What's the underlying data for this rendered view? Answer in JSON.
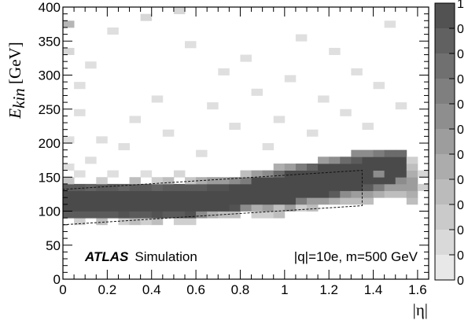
{
  "chart_data": {
    "type": "heatmap",
    "xlabel": "|η|",
    "ylabel_main": "E",
    "ylabel_sub": "kin",
    "ylabel_unit": " [GeV]",
    "xlim": [
      0,
      1.65
    ],
    "ylim": [
      0,
      400
    ],
    "x_ticks": [
      "0",
      "0.2",
      "0.4",
      "0.6",
      "0.8",
      "1",
      "1.2",
      "1.4",
      "1.6"
    ],
    "y_ticks": [
      "0",
      "50",
      "100",
      "150",
      "200",
      "250",
      "300",
      "350",
      "400"
    ],
    "x_bin_width": 0.05,
    "y_bin_width": 10,
    "colorbar_labels": [
      "1",
      "0",
      "0",
      "0",
      "0",
      "0",
      "0",
      "0",
      "0",
      "0",
      "0",
      "0"
    ],
    "colorbar_range": [
      0,
      1
    ],
    "cells": [
      [
        0,
        90,
        0.9
      ],
      [
        0,
        100,
        1.0
      ],
      [
        0,
        110,
        1.0
      ],
      [
        0,
        120,
        1.0
      ],
      [
        0,
        130,
        0.9
      ],
      [
        0,
        140,
        0.25
      ],
      [
        0,
        160,
        0.1
      ],
      [
        0,
        200,
        0.1
      ],
      [
        0,
        330,
        0.15
      ],
      [
        0,
        370,
        0.35
      ],
      [
        1,
        80,
        0.2
      ],
      [
        1,
        90,
        0.9
      ],
      [
        1,
        100,
        1.0
      ],
      [
        1,
        110,
        1.0
      ],
      [
        1,
        120,
        1.0
      ],
      [
        1,
        130,
        0.9
      ],
      [
        1,
        150,
        0.1
      ],
      [
        1,
        240,
        0.1
      ],
      [
        1,
        280,
        0.1
      ],
      [
        2,
        90,
        0.9
      ],
      [
        2,
        100,
        1.0
      ],
      [
        2,
        110,
        1.0
      ],
      [
        2,
        120,
        1.0
      ],
      [
        2,
        130,
        0.85
      ],
      [
        2,
        170,
        0.1
      ],
      [
        2,
        310,
        0.1
      ],
      [
        3,
        80,
        0.3
      ],
      [
        3,
        90,
        0.9
      ],
      [
        3,
        100,
        1.0
      ],
      [
        3,
        110,
        1.0
      ],
      [
        3,
        120,
        1.0
      ],
      [
        3,
        130,
        0.9
      ],
      [
        3,
        140,
        0.2
      ],
      [
        3,
        200,
        0.1
      ],
      [
        4,
        90,
        0.9
      ],
      [
        4,
        100,
        1.0
      ],
      [
        4,
        110,
        1.0
      ],
      [
        4,
        120,
        1.0
      ],
      [
        4,
        130,
        0.9
      ],
      [
        4,
        150,
        0.1
      ],
      [
        4,
        360,
        0.1
      ],
      [
        5,
        80,
        0.2
      ],
      [
        5,
        90,
        0.95
      ],
      [
        5,
        100,
        1.0
      ],
      [
        5,
        110,
        1.0
      ],
      [
        5,
        120,
        1.0
      ],
      [
        5,
        130,
        0.85
      ],
      [
        5,
        190,
        0.1
      ],
      [
        6,
        80,
        0.3
      ],
      [
        6,
        90,
        0.9
      ],
      [
        6,
        100,
        1.0
      ],
      [
        6,
        110,
        1.0
      ],
      [
        6,
        120,
        1.0
      ],
      [
        6,
        130,
        0.9
      ],
      [
        6,
        140,
        0.3
      ],
      [
        6,
        230,
        0.1
      ],
      [
        7,
        80,
        0.2
      ],
      [
        7,
        90,
        0.9
      ],
      [
        7,
        100,
        1.0
      ],
      [
        7,
        110,
        1.0
      ],
      [
        7,
        120,
        1.0
      ],
      [
        7,
        130,
        0.9
      ],
      [
        7,
        150,
        0.1
      ],
      [
        7,
        380,
        0.15
      ],
      [
        8,
        80,
        0.3
      ],
      [
        8,
        90,
        0.95
      ],
      [
        8,
        100,
        1.0
      ],
      [
        8,
        110,
        1.0
      ],
      [
        8,
        120,
        1.0
      ],
      [
        8,
        130,
        0.85
      ],
      [
        8,
        140,
        0.2
      ],
      [
        8,
        260,
        0.1
      ],
      [
        9,
        90,
        0.9
      ],
      [
        9,
        100,
        1.0
      ],
      [
        9,
        110,
        1.0
      ],
      [
        9,
        120,
        1.0
      ],
      [
        9,
        130,
        0.9
      ],
      [
        9,
        140,
        0.3
      ],
      [
        9,
        210,
        0.1
      ],
      [
        10,
        80,
        0.2
      ],
      [
        10,
        90,
        0.9
      ],
      [
        10,
        100,
        1.0
      ],
      [
        10,
        110,
        1.0
      ],
      [
        10,
        120,
        1.0
      ],
      [
        10,
        130,
        0.9
      ],
      [
        10,
        150,
        0.15
      ],
      [
        10,
        390,
        0.15
      ],
      [
        11,
        80,
        0.2
      ],
      [
        11,
        90,
        0.95
      ],
      [
        11,
        100,
        1.0
      ],
      [
        11,
        110,
        1.0
      ],
      [
        11,
        120,
        1.0
      ],
      [
        11,
        130,
        0.9
      ],
      [
        11,
        140,
        0.25
      ],
      [
        11,
        340,
        0.1
      ],
      [
        12,
        90,
        0.6
      ],
      [
        12,
        100,
        1.0
      ],
      [
        12,
        110,
        1.0
      ],
      [
        12,
        120,
        1.0
      ],
      [
        12,
        130,
        0.9
      ],
      [
        12,
        140,
        0.4
      ],
      [
        12,
        180,
        0.1
      ],
      [
        13,
        90,
        0.4
      ],
      [
        13,
        100,
        1.0
      ],
      [
        13,
        110,
        1.0
      ],
      [
        13,
        120,
        1.0
      ],
      [
        13,
        130,
        0.95
      ],
      [
        13,
        140,
        0.5
      ],
      [
        13,
        250,
        0.1
      ],
      [
        14,
        90,
        0.3
      ],
      [
        14,
        100,
        1.0
      ],
      [
        14,
        110,
        1.0
      ],
      [
        14,
        120,
        1.0
      ],
      [
        14,
        130,
        0.95
      ],
      [
        14,
        140,
        0.5
      ],
      [
        14,
        300,
        0.1
      ],
      [
        15,
        90,
        0.3
      ],
      [
        15,
        100,
        0.95
      ],
      [
        15,
        110,
        1.0
      ],
      [
        15,
        120,
        1.0
      ],
      [
        15,
        130,
        1.0
      ],
      [
        15,
        140,
        0.6
      ],
      [
        15,
        220,
        0.1
      ],
      [
        16,
        100,
        0.6
      ],
      [
        16,
        110,
        1.0
      ],
      [
        16,
        120,
        1.0
      ],
      [
        16,
        130,
        1.0
      ],
      [
        16,
        140,
        0.7
      ],
      [
        16,
        150,
        0.3
      ],
      [
        16,
        320,
        0.1
      ],
      [
        17,
        90,
        0.2
      ],
      [
        17,
        100,
        0.4
      ],
      [
        17,
        110,
        1.0
      ],
      [
        17,
        120,
        1.0
      ],
      [
        17,
        130,
        1.0
      ],
      [
        17,
        140,
        1.0
      ],
      [
        17,
        150,
        0.5
      ],
      [
        17,
        270,
        0.1
      ],
      [
        18,
        90,
        0.2
      ],
      [
        18,
        100,
        0.5
      ],
      [
        18,
        110,
        1.0
      ],
      [
        18,
        120,
        1.0
      ],
      [
        18,
        130,
        1.0
      ],
      [
        18,
        140,
        1.0
      ],
      [
        18,
        150,
        0.6
      ],
      [
        18,
        190,
        0.1
      ],
      [
        19,
        90,
        0.3
      ],
      [
        19,
        100,
        0.3
      ],
      [
        19,
        110,
        1.0
      ],
      [
        19,
        120,
        1.0
      ],
      [
        19,
        130,
        1.0
      ],
      [
        19,
        140,
        1.0
      ],
      [
        19,
        150,
        0.8
      ],
      [
        19,
        160,
        0.4
      ],
      [
        19,
        230,
        0.1
      ],
      [
        20,
        100,
        0.5
      ],
      [
        20,
        110,
        1.0
      ],
      [
        20,
        120,
        1.0
      ],
      [
        20,
        130,
        1.0
      ],
      [
        20,
        140,
        1.0
      ],
      [
        20,
        150,
        1.0
      ],
      [
        20,
        160,
        0.5
      ],
      [
        20,
        290,
        0.1
      ],
      [
        21,
        100,
        0.2
      ],
      [
        21,
        110,
        0.7
      ],
      [
        21,
        120,
        1.0
      ],
      [
        21,
        130,
        1.0
      ],
      [
        21,
        140,
        1.0
      ],
      [
        21,
        150,
        1.0
      ],
      [
        21,
        160,
        0.7
      ],
      [
        21,
        350,
        0.1
      ],
      [
        22,
        100,
        0.3
      ],
      [
        22,
        110,
        0.5
      ],
      [
        22,
        120,
        1.0
      ],
      [
        22,
        130,
        1.0
      ],
      [
        22,
        140,
        1.0
      ],
      [
        22,
        150,
        1.0
      ],
      [
        22,
        160,
        0.85
      ],
      [
        22,
        210,
        0.1
      ],
      [
        23,
        110,
        0.5
      ],
      [
        23,
        120,
        1.0
      ],
      [
        23,
        130,
        1.0
      ],
      [
        23,
        140,
        1.0
      ],
      [
        23,
        150,
        1.0
      ],
      [
        23,
        160,
        1.0
      ],
      [
        23,
        170,
        0.5
      ],
      [
        23,
        260,
        0.1
      ],
      [
        24,
        110,
        0.4
      ],
      [
        24,
        120,
        0.9
      ],
      [
        24,
        130,
        1.0
      ],
      [
        24,
        140,
        1.0
      ],
      [
        24,
        150,
        1.0
      ],
      [
        24,
        160,
        1.0
      ],
      [
        24,
        170,
        0.6
      ],
      [
        24,
        330,
        0.1
      ],
      [
        25,
        110,
        0.3
      ],
      [
        25,
        120,
        0.6
      ],
      [
        25,
        130,
        1.0
      ],
      [
        25,
        140,
        1.0
      ],
      [
        25,
        150,
        1.0
      ],
      [
        25,
        160,
        1.0
      ],
      [
        25,
        170,
        0.8
      ],
      [
        25,
        240,
        0.1
      ],
      [
        26,
        110,
        0.3
      ],
      [
        26,
        120,
        0.5
      ],
      [
        26,
        130,
        1.0
      ],
      [
        26,
        140,
        1.0
      ],
      [
        26,
        150,
        1.0
      ],
      [
        26,
        160,
        1.0
      ],
      [
        26,
        170,
        0.9
      ],
      [
        26,
        180,
        0.6
      ],
      [
        26,
        300,
        0.1
      ],
      [
        27,
        110,
        0.3
      ],
      [
        27,
        120,
        0.5
      ],
      [
        27,
        130,
        0.9
      ],
      [
        27,
        140,
        1.0
      ],
      [
        27,
        150,
        1.0
      ],
      [
        27,
        160,
        1.0
      ],
      [
        27,
        170,
        1.0
      ],
      [
        27,
        180,
        0.6
      ],
      [
        27,
        220,
        0.1
      ],
      [
        28,
        120,
        0.4
      ],
      [
        28,
        130,
        0.7
      ],
      [
        28,
        140,
        1.0
      ],
      [
        28,
        150,
        0.6
      ],
      [
        28,
        160,
        1.0
      ],
      [
        28,
        170,
        1.0
      ],
      [
        28,
        180,
        0.7
      ],
      [
        28,
        280,
        0.1
      ],
      [
        29,
        120,
        0.3
      ],
      [
        29,
        130,
        0.5
      ],
      [
        29,
        140,
        1.0
      ],
      [
        29,
        150,
        1.0
      ],
      [
        29,
        160,
        1.0
      ],
      [
        29,
        170,
        1.0
      ],
      [
        29,
        180,
        0.8
      ],
      [
        29,
        370,
        0.1
      ],
      [
        30,
        120,
        0.3
      ],
      [
        30,
        130,
        0.5
      ],
      [
        30,
        140,
        0.6
      ],
      [
        30,
        150,
        1.0
      ],
      [
        30,
        160,
        1.0
      ],
      [
        30,
        170,
        1.0
      ],
      [
        30,
        180,
        0.8
      ],
      [
        30,
        250,
        0.1
      ],
      [
        31,
        110,
        0.3
      ],
      [
        31,
        120,
        0.4
      ],
      [
        31,
        130,
        0.5
      ],
      [
        31,
        140,
        0.5
      ],
      [
        31,
        150,
        0.4
      ],
      [
        31,
        160,
        0.3
      ],
      [
        31,
        170,
        0.2
      ],
      [
        32,
        130,
        0.2
      ],
      [
        32,
        150,
        0.15
      ],
      [
        33,
        130,
        0.1
      ],
      [
        33,
        160,
        0.1
      ]
    ]
  }
}
